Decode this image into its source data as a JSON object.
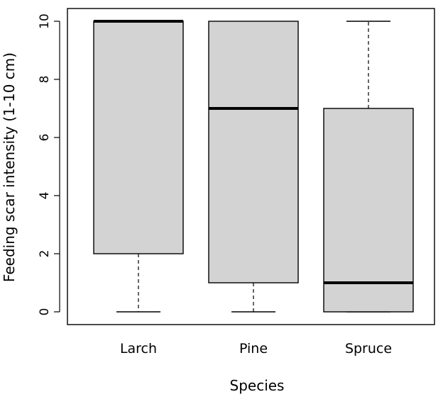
{
  "chart_data": {
    "type": "boxplot",
    "xlabel": "Species",
    "ylabel": "Feeding scar intensity (1-10 cm)",
    "ylim": [
      0,
      10
    ],
    "yticks": [
      0,
      2,
      4,
      6,
      8,
      10
    ],
    "grid": false,
    "colors": {
      "box_fill": "#d3d3d3",
      "stroke": "#000000"
    },
    "categories": [
      "Larch",
      "Pine",
      "Spruce"
    ],
    "boxes": [
      {
        "category": "Larch",
        "whisker_low": 0,
        "q1": 2,
        "median": 10,
        "q3": 10,
        "whisker_high": 10
      },
      {
        "category": "Pine",
        "whisker_low": 0,
        "q1": 1,
        "median": 7,
        "q3": 10,
        "whisker_high": 10
      },
      {
        "category": "Spruce",
        "whisker_low": 0,
        "q1": 0,
        "median": 1,
        "q3": 7,
        "whisker_high": 10
      }
    ]
  }
}
